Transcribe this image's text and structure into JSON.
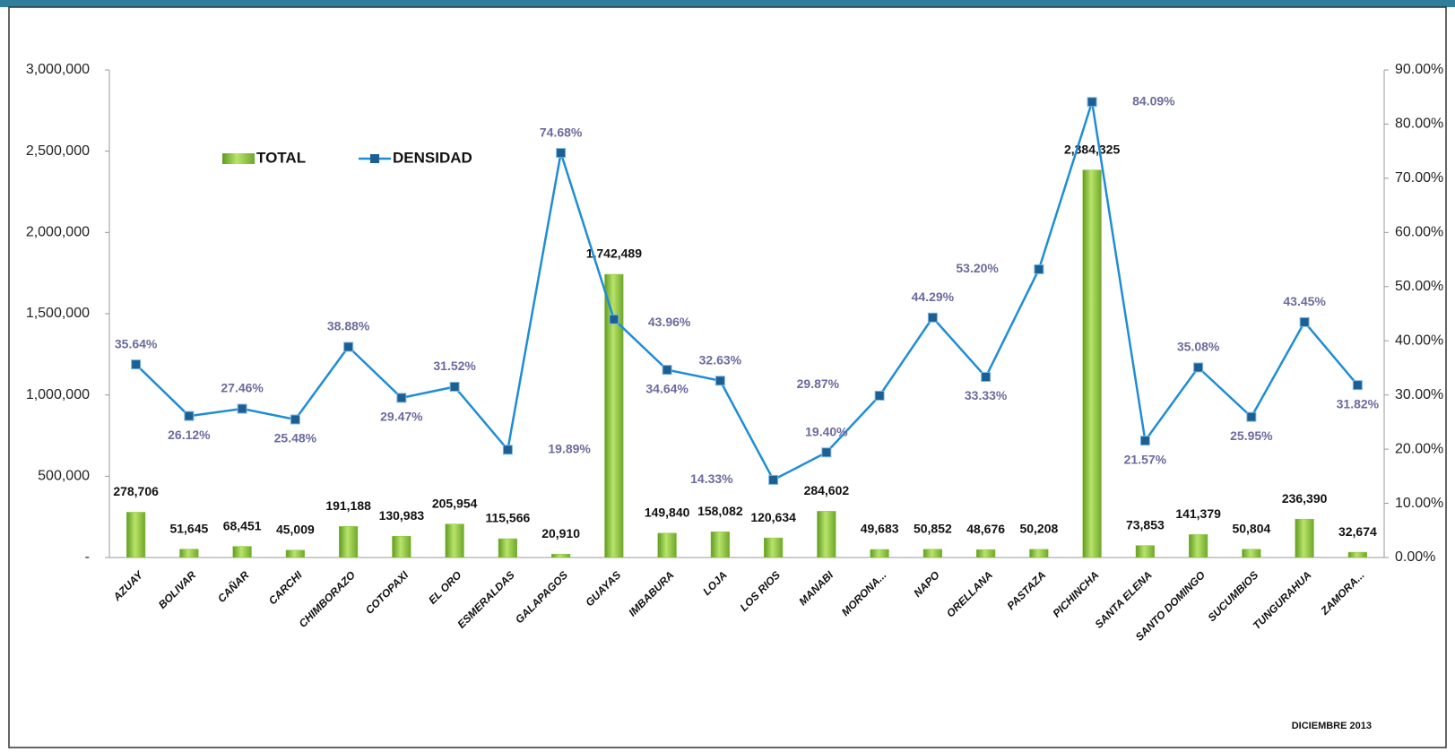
{
  "chart_data": {
    "type": "bar",
    "categories": [
      "AZUAY",
      "BOLIVAR",
      "CAÑAR",
      "CARCHI",
      "CHIMBORAZO",
      "COTOPAXI",
      "EL ORO",
      "ESMERALDAS",
      "GALAPAGOS",
      "GUAYAS",
      "IMBABURA",
      "LOJA",
      "LOS RIOS",
      "MANABI",
      "MORONA...",
      "NAPO",
      "ORELLANA",
      "PASTAZA",
      "PICHINCHA",
      "SANTA ELENA",
      "SANTO DOMINGO",
      "SUCUMBIOS",
      "TUNGURAHUA",
      "ZAMORA..."
    ],
    "series": [
      {
        "name": "TOTAL",
        "type": "bar",
        "color": "#8cc63e",
        "values": [
          278706,
          51645,
          68451,
          45009,
          191188,
          130983,
          205954,
          115566,
          20910,
          1742489,
          149840,
          158082,
          120634,
          284602,
          49683,
          50852,
          48676,
          50208,
          2384325,
          73853,
          141379,
          50804,
          236390,
          32674
        ],
        "value_labels": [
          "278,706",
          "51,645",
          "68,451",
          "45,009",
          "191,188",
          "130,983",
          "205,954",
          "115,566",
          "20,910",
          "1,742,489",
          "149,840",
          "158,082",
          "120,634",
          "284,602",
          "49,683",
          "50,852",
          "48,676",
          "50,208",
          "2,384,325",
          "73,853",
          "141,379",
          "50,804",
          "236,390",
          "32,674"
        ]
      },
      {
        "name": "DENSIDAD",
        "type": "line",
        "axis": "y2",
        "color": "#1f8dd6",
        "values": [
          35.64,
          26.12,
          27.46,
          25.48,
          38.88,
          29.47,
          31.52,
          19.89,
          74.68,
          43.96,
          34.64,
          32.63,
          14.33,
          19.4,
          29.87,
          44.29,
          33.33,
          53.2,
          84.09,
          21.57,
          35.08,
          25.95,
          43.45,
          31.82
        ],
        "value_labels": [
          "35.64%",
          "26.12%",
          "27.46%",
          "25.48%",
          "38.88%",
          "29.47%",
          "31.52%",
          "19.89%",
          "74.68%",
          "43.96%",
          "34.64%",
          "32.63%",
          "14.33%",
          "19.40%",
          "29.87%",
          "44.29%",
          "33.33%",
          "53.20%",
          "84.09%",
          "21.57%",
          "35.08%",
          "25.95%",
          "43.45%",
          "31.82%"
        ]
      }
    ],
    "ylim": [
      0,
      3000000
    ],
    "yticks": [
      {
        "value": 0,
        "label": "-"
      },
      {
        "value": 500000,
        "label": "500,000"
      },
      {
        "value": 1000000,
        "label": "1,000,000"
      },
      {
        "value": 1500000,
        "label": "1,500,000"
      },
      {
        "value": 2000000,
        "label": "2,000,000"
      },
      {
        "value": 2500000,
        "label": "2,500,000"
      },
      {
        "value": 3000000,
        "label": "3,000,000"
      }
    ],
    "y2lim": [
      0,
      90
    ],
    "y2ticks": [
      {
        "value": 0,
        "label": "0.00%"
      },
      {
        "value": 10,
        "label": "10.00%"
      },
      {
        "value": 20,
        "label": "20.00%"
      },
      {
        "value": 30,
        "label": "30.00%"
      },
      {
        "value": 40,
        "label": "40.00%"
      },
      {
        "value": 50,
        "label": "50.00%"
      },
      {
        "value": 60,
        "label": "60.00%"
      },
      {
        "value": 70,
        "label": "70.00%"
      },
      {
        "value": 80,
        "label": "80.00%"
      },
      {
        "value": 90,
        "label": "90.00%"
      }
    ],
    "annotation": "DICIEMBRE 2013",
    "legend": "upper left"
  }
}
